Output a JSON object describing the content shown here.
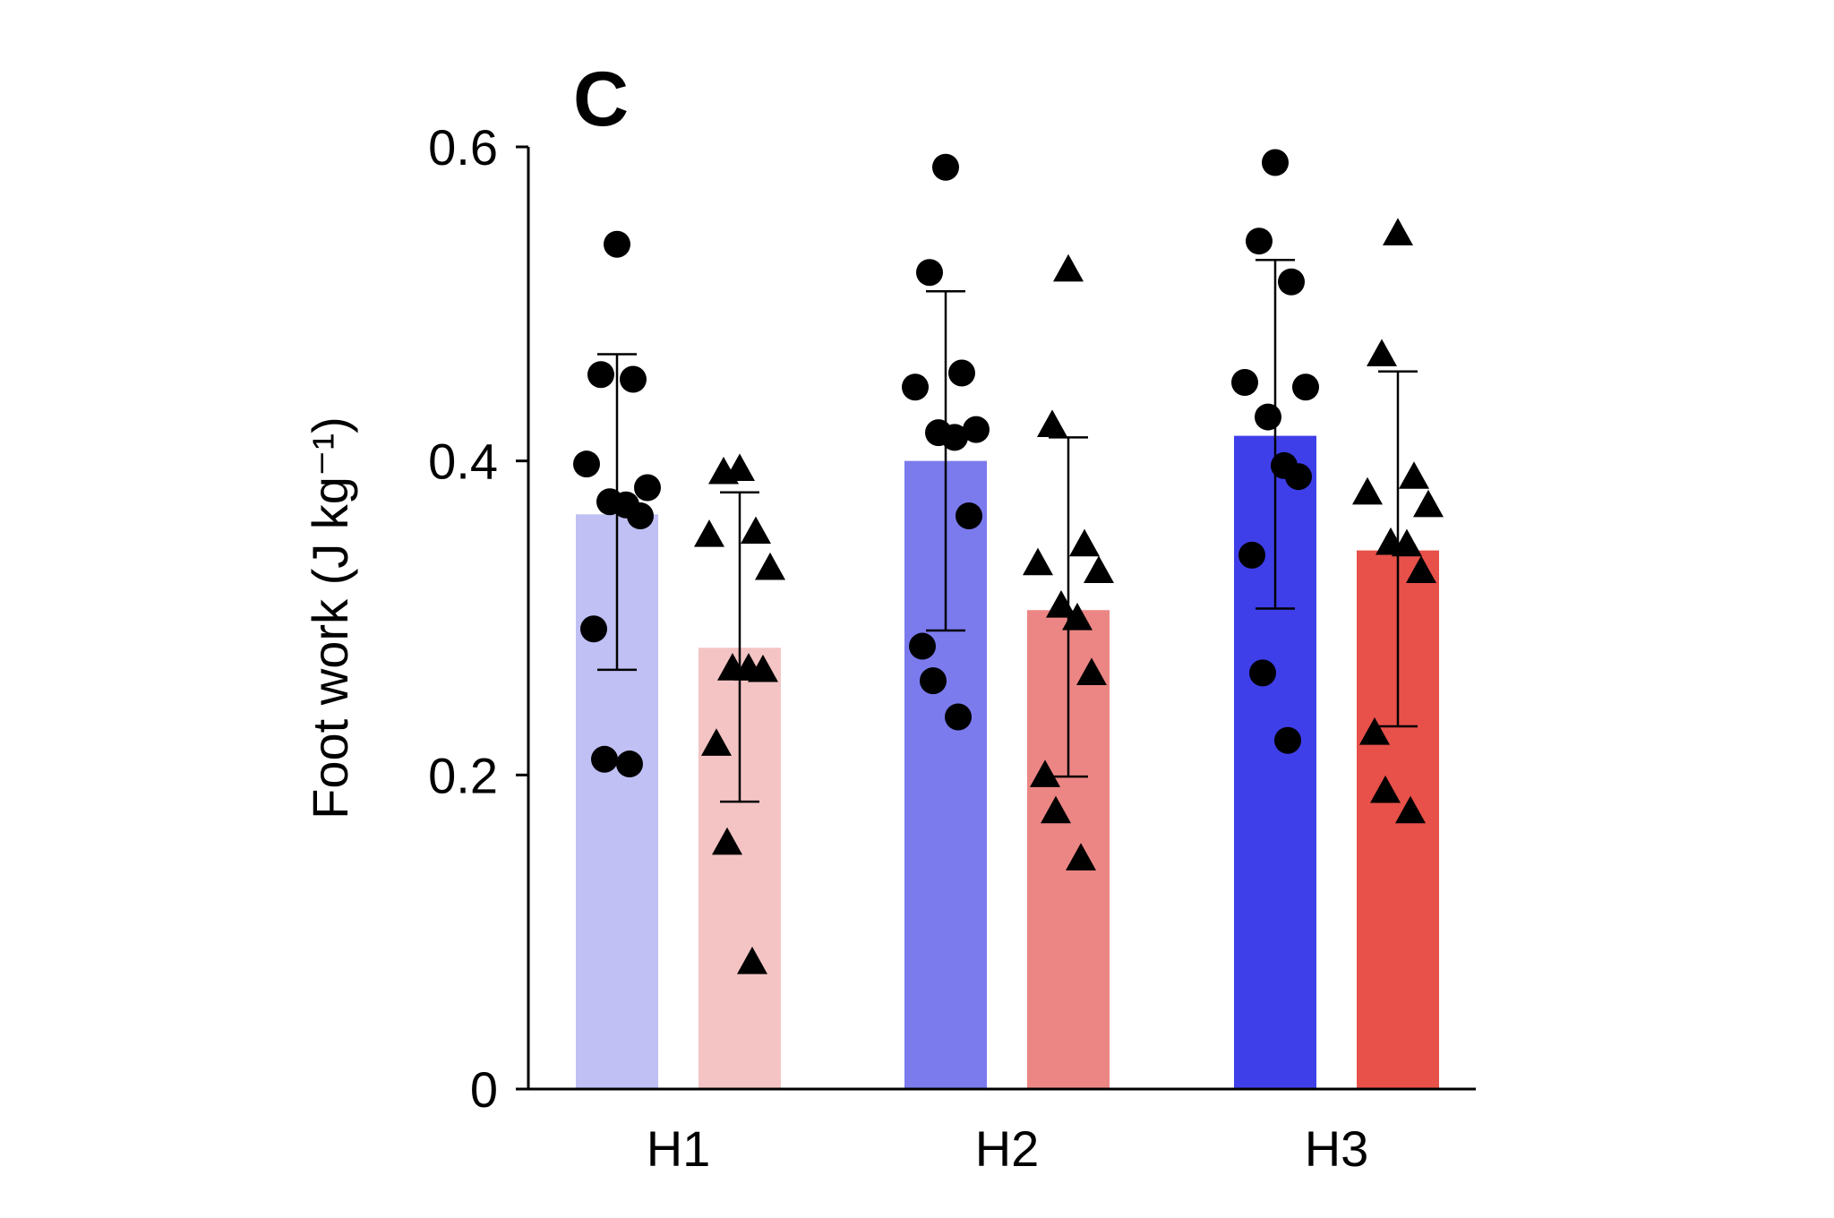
{
  "chart_data": {
    "type": "bar",
    "panel_label": "C",
    "xlabel": "",
    "ylabel": "Foot work (J kg⁻¹)",
    "ylim": [
      0,
      0.6
    ],
    "yticks": [
      0,
      0.2,
      0.4,
      0.6
    ],
    "ytick_labels": [
      "0",
      "0.2",
      "0.4",
      "0.6"
    ],
    "grid": false,
    "categories": [
      "H1",
      "H2",
      "H3"
    ],
    "series": [
      {
        "marker": "circle",
        "colors": [
          "#c0c0f4",
          "#7b7bee",
          "#3f3fea"
        ],
        "values": [
          0.366,
          0.4,
          0.416
        ],
        "error": [
          [
            0.267,
            0.468
          ],
          [
            0.292,
            0.508
          ],
          [
            0.306,
            0.528
          ]
        ],
        "points": [
          [
            0.538,
            0.455,
            0.452,
            0.398,
            0.383,
            0.374,
            0.372,
            0.365,
            0.293,
            0.21,
            0.207
          ],
          [
            0.587,
            0.52,
            0.456,
            0.447,
            0.42,
            0.418,
            0.415,
            0.365,
            0.282,
            0.26,
            0.237
          ],
          [
            0.59,
            0.54,
            0.514,
            0.45,
            0.447,
            0.428,
            0.397,
            0.39,
            0.34,
            0.265,
            0.222
          ]
        ]
      },
      {
        "marker": "triangle",
        "colors": [
          "#f4c4c4",
          "#ec8684",
          "#e8504a"
        ],
        "values": [
          0.281,
          0.305,
          0.343
        ],
        "error": [
          [
            0.183,
            0.38
          ],
          [
            0.199,
            0.415
          ],
          [
            0.231,
            0.457
          ]
        ],
        "points": [
          [
            0.395,
            0.393,
            0.355,
            0.353,
            0.332,
            0.268,
            0.268,
            0.267,
            0.22,
            0.157,
            0.081
          ],
          [
            0.522,
            0.423,
            0.347,
            0.335,
            0.33,
            0.308,
            0.3,
            0.265,
            0.2,
            0.177,
            0.147
          ],
          [
            0.545,
            0.468,
            0.39,
            0.38,
            0.372,
            0.348,
            0.347,
            0.33,
            0.227,
            0.19,
            0.177
          ]
        ]
      }
    ]
  }
}
